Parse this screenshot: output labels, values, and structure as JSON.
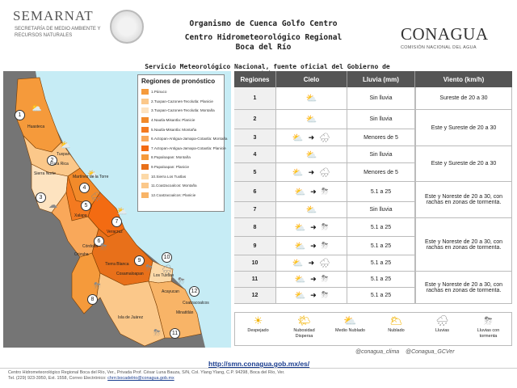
{
  "header": {
    "left_logo_text": "SEMARNAT",
    "left_logo_sub": "SECRETARÍA DE MEDIO AMBIENTE Y RECURSOS NATURALES",
    "title1": "Organismo de Cuenca Golfo Centro",
    "title2": "Centro Hidrometeorológico Regional",
    "title3": "Boca del Río",
    "subtitle": "Servicio Meteorológico Nacional, fuente oficial del Gobierno de México",
    "right_logo_text": "CONAGUA",
    "right_logo_sub": "COMISIÓN NACIONAL DEL AGUA"
  },
  "legend": {
    "title": "Regiones de pronóstico",
    "items": [
      {
        "label": "1.Pánuco",
        "color": "#f59a3b"
      },
      {
        "label": "2.Tuxpan-Cazones-Tecolutla: Planicie",
        "color": "#fbc88a"
      },
      {
        "label": "3.Tuxpan-Cazones-Tecolutla: Montaña",
        "color": "#fde3c0"
      },
      {
        "label": "4.Nautla-Misantla: Planicie",
        "color": "#f28a2a"
      },
      {
        "label": "5.Nautla-Misantla: Montaña",
        "color": "#f47a20"
      },
      {
        "label": "6.Actopan-Antigua-Jamapa-Cotaxtla: Montaña",
        "color": "#f9a85a"
      },
      {
        "label": "7.Actopan-Antigua-Jamapa-Cotaxtla: Planicie",
        "color": "#f36b12"
      },
      {
        "label": "8.Papaloapan: Montaña",
        "color": "#f59a3b"
      },
      {
        "label": "9.Papaloapan: Planicie",
        "color": "#e8701a"
      },
      {
        "label": "10.Sierra Los Tuxtlas",
        "color": "#fcd9a8"
      },
      {
        "label": "11.Coatzacoalcos: Montaña",
        "color": "#fbc88a"
      },
      {
        "label": "12.Coatzacoalcos: Planicie",
        "color": "#f8b467"
      }
    ]
  },
  "map": {
    "places": [
      "Huasteca",
      "Sierra Norte",
      "Tuxpan",
      "Poza Rica",
      "Martínez de la Torre",
      "Xalapa",
      "Veracruz",
      "Córdoba",
      "Orizaba",
      "Tierra Blanca",
      "Cosamaloapan",
      "Los Tuxtlas",
      "Acayucan",
      "Coatzacoalcos",
      "Minatitlán",
      "Isla de Juárez"
    ]
  },
  "table": {
    "headers": [
      "Regiones",
      "Cielo",
      "Lluvia (mm)",
      "Viento (km/h)"
    ],
    "rows": [
      {
        "region": "1",
        "rain": "Sin lluvia"
      },
      {
        "region": "2",
        "rain": "Sin lluvia"
      },
      {
        "region": "3",
        "rain": "Menores de 5"
      },
      {
        "region": "4",
        "rain": "Sin lluvia"
      },
      {
        "region": "5",
        "rain": "Menores de 5"
      },
      {
        "region": "6",
        "rain": "5.1 a 25"
      },
      {
        "region": "7",
        "rain": "Sin lluvia"
      },
      {
        "region": "8",
        "rain": "5.1 a 25"
      },
      {
        "region": "9",
        "rain": "5.1 a 25"
      },
      {
        "region": "10",
        "rain": "5.1 a 25"
      },
      {
        "region": "11",
        "rain": "5.1 a 25"
      },
      {
        "region": "12",
        "rain": "5.1 a 25"
      }
    ],
    "wind": [
      "Sureste de 20 a 30",
      "Este y Sureste de 20 a 30",
      "Este y Sureste de 20 a 30",
      "Este y Noreste de 20 a 30, con rachas en zonas de tormenta.",
      "Este y Noreste de 20 a 30, con rachas en zonas de tormenta.",
      "Este y Noreste de 20 a 30, con rachas en zonas de tormenta."
    ]
  },
  "sky_icons": [
    {
      "label": "Despejado",
      "icon": "sun-icon"
    },
    {
      "label": "Nubosidad Dispersa",
      "icon": "partly-sunny-icon"
    },
    {
      "label": "Medio Nublado",
      "icon": "half-cloudy-icon"
    },
    {
      "label": "Nublado",
      "icon": "cloudy-icon"
    },
    {
      "label": "Lluvias",
      "icon": "rain-icon"
    },
    {
      "label": "Lluvias con tormenta",
      "icon": "storm-icon"
    }
  ],
  "social": {
    "handle1": "@conagua_clima",
    "handle2": "@Conagua_GCVer"
  },
  "url": "http://smn.conagua.gob.mx/es/",
  "footer": {
    "line1": "Centro Hidrometeorológico Regional Boca del Río, Ver., Privada Prof. César Luna Bauza, S/N, Col. Ylang Ylang, C.P. 94298, Boca del Río, Ver.",
    "line2": "Tel. (229) 923-3950, Ext. 1558, Correo Electrónico:",
    "email": "chrrr.bocadelrio@conagua.gob.mx"
  }
}
